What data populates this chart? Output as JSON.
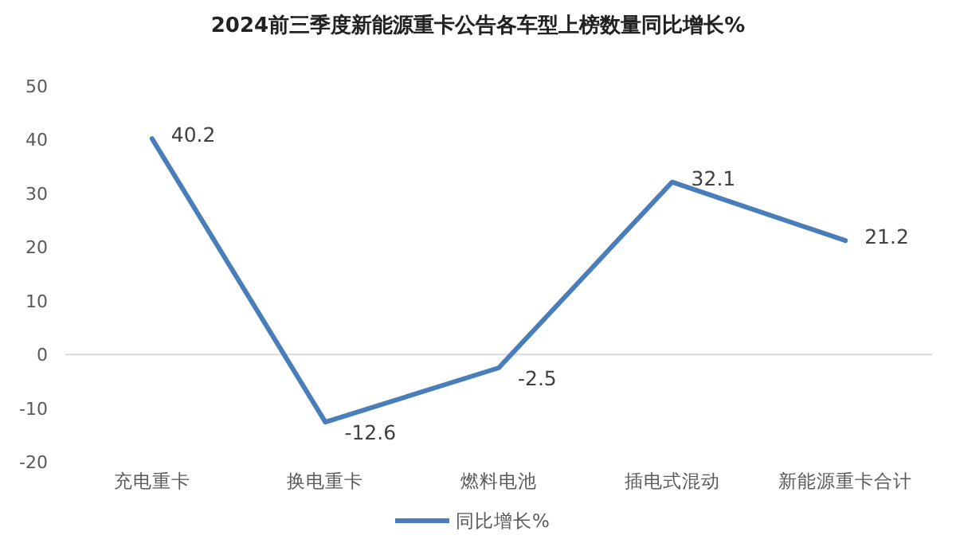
{
  "chart_data": {
    "type": "line",
    "title": "2024前三季度新能源重卡公告各车型上榜数量同比增长%",
    "categories": [
      "充电重卡",
      "换电重卡",
      "燃料电池",
      "插电式混动",
      "新能源重卡合计"
    ],
    "series": [
      {
        "name": "同比增长%",
        "color": "#4a7ebb",
        "values": [
          40.2,
          -12.6,
          -2.5,
          32.1,
          21.2
        ]
      }
    ],
    "ylim": [
      -20,
      50
    ],
    "yticks": [
      -20,
      -10,
      0,
      10,
      20,
      30,
      40,
      50
    ],
    "legend": "bottom",
    "marker": "none",
    "line_style": "solid",
    "data_labels": true
  }
}
